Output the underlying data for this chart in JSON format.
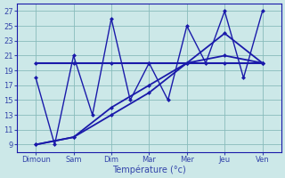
{
  "bg_color": "#cce8e8",
  "grid_color": "#88bbbb",
  "line_color": "#1a1aaa",
  "tick_color": "#3344aa",
  "xlabel": "Température (°c)",
  "day_labels": [
    "Dimoun",
    "Sam",
    "Dim",
    "Mar",
    "Mer",
    "Jeu",
    "Ven"
  ],
  "ylim": [
    8,
    28
  ],
  "yticks": [
    9,
    11,
    13,
    15,
    17,
    19,
    21,
    23,
    25,
    27
  ],
  "xlim": [
    -0.5,
    6.5
  ],
  "zigzag_x": [
    0,
    0.5,
    1,
    1.5,
    2,
    2.5,
    3,
    3.5,
    4,
    4.5,
    5,
    5.5,
    6
  ],
  "zigzag_y": [
    18,
    9,
    21,
    13,
    26,
    15,
    20,
    15,
    25,
    20,
    27,
    18,
    27
  ],
  "trend1_x": [
    0,
    1,
    2,
    3,
    4,
    5,
    6
  ],
  "trend1_y": [
    9,
    10,
    13,
    16,
    20,
    21,
    20
  ],
  "trend2_x": [
    0,
    1,
    2,
    3,
    4,
    5,
    6
  ],
  "trend2_y": [
    9,
    10,
    14,
    17,
    20,
    24,
    20
  ],
  "flat_x": [
    0,
    1,
    2,
    3,
    4,
    5,
    6
  ],
  "flat_y": [
    20,
    20,
    20,
    20,
    20,
    20,
    20
  ],
  "lw_zigzag": 1.0,
  "lw_trend": 1.3,
  "lw_flat": 1.5,
  "markersize": 2.5
}
